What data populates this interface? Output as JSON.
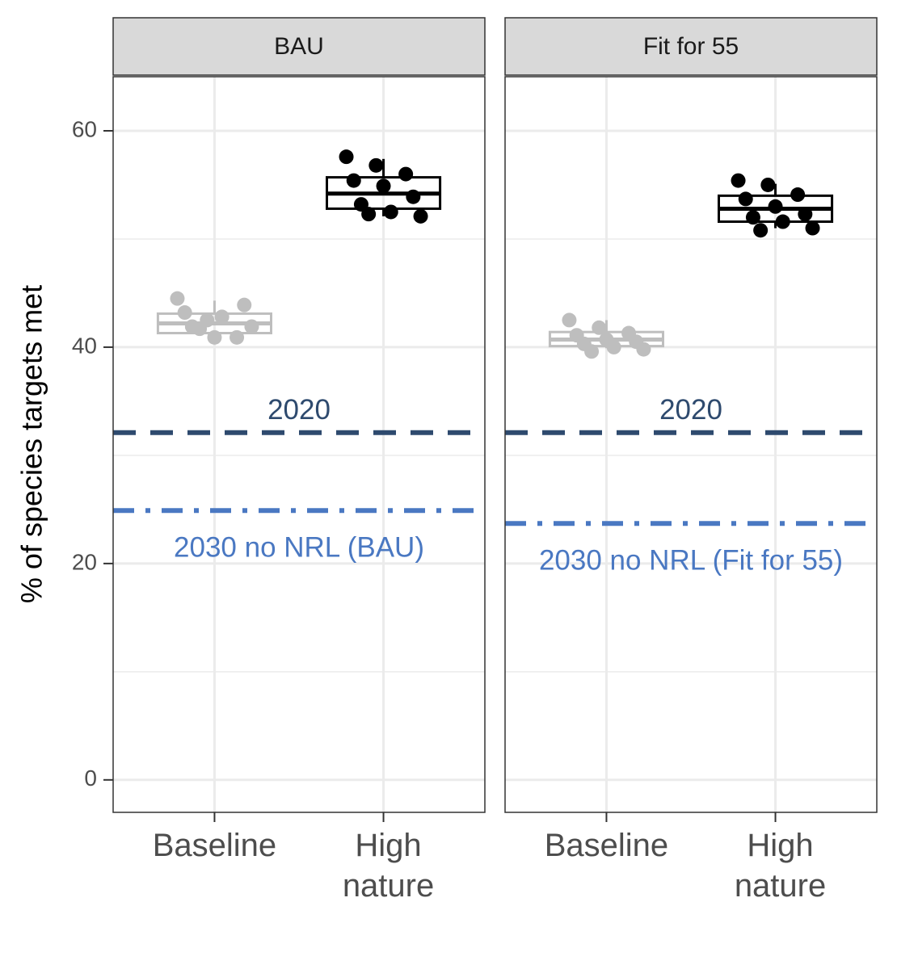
{
  "chart_data": [
    {
      "type": "box",
      "title": "BAU",
      "ylabel": "% of species targets met",
      "categories": [
        "Baseline",
        "High nature"
      ],
      "ylim": [
        -3,
        65
      ],
      "yticks": [
        0,
        20,
        40,
        60
      ],
      "minor_grid": [
        10,
        30,
        50
      ],
      "boxes": [
        {
          "color": "#bebebe",
          "q1": 41.3,
          "median": 42.2,
          "q3": 43.1,
          "whisker_low": 40.8,
          "whisker_high": 44.3,
          "points": [
            44.5,
            42.5,
            40.9,
            43.2,
            40.9,
            43.9,
            41.9,
            42.8,
            41.9,
            41.7
          ]
        },
        {
          "color": "#000000",
          "q1": 52.8,
          "median": 54.2,
          "q3": 55.7,
          "whisker_low": 52.1,
          "whisker_high": 57.4,
          "points": [
            57.6,
            56.8,
            56.0,
            55.4,
            54.9,
            53.9,
            53.2,
            52.5,
            52.1,
            52.3
          ]
        }
      ],
      "reference_lines": [
        {
          "label": "2020",
          "value": 32.1,
          "color": "#2e4a6e",
          "style": "dashed"
        },
        {
          "label": "2030 no NRL (BAU)",
          "value": 24.9,
          "color": "#4a78c2",
          "style": "dashdot"
        }
      ]
    },
    {
      "type": "box",
      "title": "Fit for 55",
      "categories": [
        "Baseline",
        "High nature"
      ],
      "ylim": [
        -3,
        65
      ],
      "yticks": [
        0,
        20,
        40,
        60
      ],
      "minor_grid": [
        10,
        30,
        50
      ],
      "boxes": [
        {
          "color": "#bebebe",
          "q1": 40.1,
          "median": 40.7,
          "q3": 41.4,
          "whisker_low": 39.9,
          "whisker_high": 42.5,
          "points": [
            42.5,
            41.8,
            41.3,
            41.1,
            40.7,
            40.5,
            40.3,
            40.0,
            39.8,
            39.6
          ]
        },
        {
          "color": "#000000",
          "q1": 51.6,
          "median": 52.8,
          "q3": 54.0,
          "whisker_low": 51.0,
          "whisker_high": 55.1,
          "points": [
            55.4,
            55.0,
            54.1,
            53.7,
            53.0,
            52.3,
            52.0,
            51.6,
            51.0,
            50.8
          ]
        }
      ],
      "reference_lines": [
        {
          "label": "2020",
          "value": 32.1,
          "color": "#2e4a6e",
          "style": "dashed"
        },
        {
          "label": "2030 no NRL (Fit for 55)",
          "value": 23.7,
          "color": "#4a78c2",
          "style": "dashdot"
        }
      ]
    }
  ]
}
